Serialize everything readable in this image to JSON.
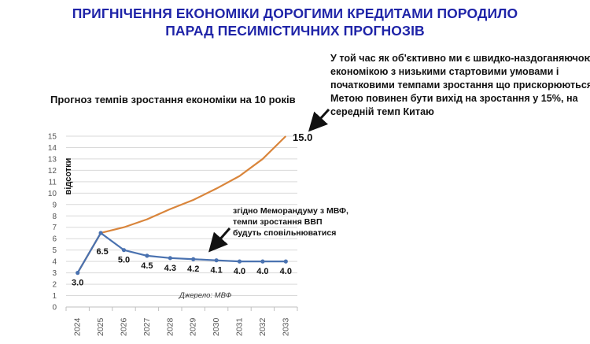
{
  "headline": {
    "line1": "ПРИГНІЧЕННЯ ЕКОНОМІКИ ДОРОГИМИ КРЕДИТАМИ ПОРОДИЛО",
    "line2": "ПАРАД ПЕСИМІСТИЧНИХ ПРОГНОЗІВ"
  },
  "note": {
    "lines": [
      "У той час як об'єктивно ми є швидко-наздоганяючою",
      "економікою з низькими стартовими умовами і",
      "початковими темпами зростання що прискорюються.",
      "Метою повинен бути вихід на зростання у 15%, на",
      "середній темп Китаю"
    ]
  },
  "chart_data": {
    "type": "line",
    "title": "Прогноз темпів зростання економіки на 10 років",
    "ylabel": "відсотки",
    "xlabel": "",
    "x": [
      "2024",
      "2025",
      "2026",
      "2027",
      "2028",
      "2029",
      "2030",
      "2031",
      "2032",
      "2033"
    ],
    "ylim": [
      0,
      15
    ],
    "yticks": [
      0,
      1,
      2,
      3,
      4,
      5,
      6,
      7,
      8,
      9,
      10,
      11,
      12,
      13,
      14,
      15
    ],
    "grid": true,
    "series": [
      {
        "color": "#d9853b",
        "values": [
          3.0,
          6.5,
          7.0,
          7.7,
          8.6,
          9.4,
          10.4,
          11.5,
          13.0,
          15.0
        ],
        "end_label": "15.0"
      },
      {
        "color": "#4a72b0",
        "values": [
          3.0,
          6.5,
          5.0,
          4.5,
          4.3,
          4.2,
          4.1,
          4.0,
          4.0,
          4.0
        ],
        "labels": [
          "3.0",
          "6.5",
          "5.0",
          "4.5",
          "4.3",
          "4.2",
          "4.1",
          "4.0",
          "4.0",
          "4.0"
        ]
      }
    ],
    "annotation": {
      "lines": [
        "згідно Меморандуму з МВФ,",
        "темпи зростання ВВП",
        "будуть сповільнюватися"
      ]
    },
    "source": "Джерело: МВФ"
  }
}
